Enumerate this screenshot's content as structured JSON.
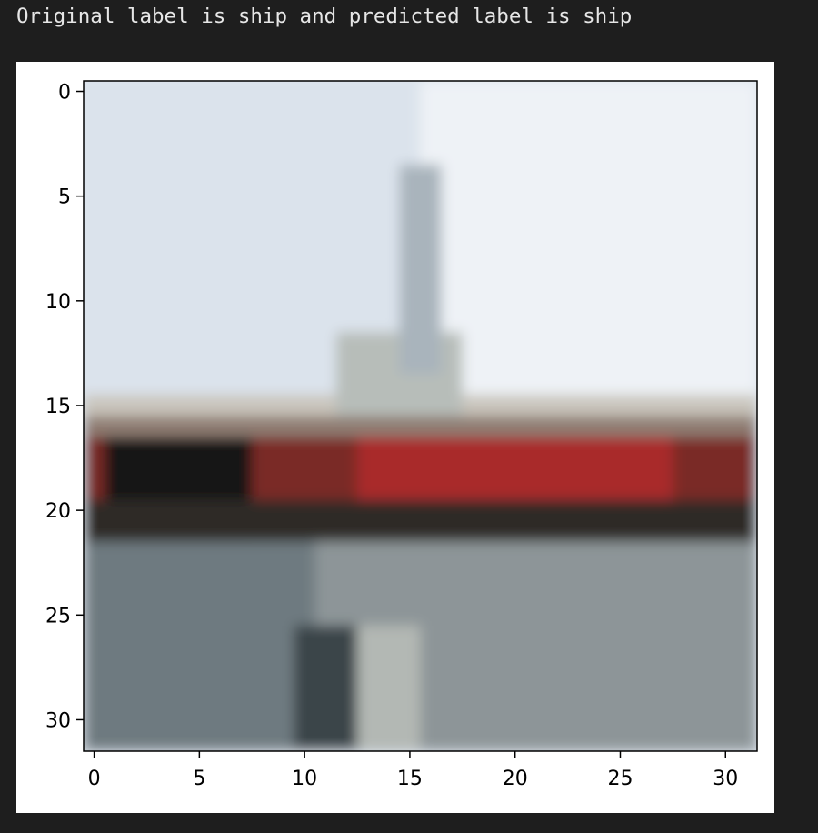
{
  "output": {
    "text": "Original label is ship and predicted label is ship"
  },
  "chart_data": {
    "type": "heatmap",
    "title": "",
    "xlabel": "",
    "ylabel": "",
    "xlim": [
      -0.5,
      31.5
    ],
    "ylim": [
      31.5,
      -0.5
    ],
    "xticks": [
      0,
      5,
      10,
      15,
      20,
      25,
      30
    ],
    "yticks": [
      0,
      5,
      10,
      15,
      20,
      25,
      30
    ],
    "grid": false,
    "image_size": [
      32,
      32
    ],
    "bands": [
      {
        "rows": [
          0,
          14
        ],
        "cols": [
          0,
          31
        ],
        "color": "#dbe3ec"
      },
      {
        "rows": [
          0,
          14
        ],
        "cols": [
          16,
          31
        ],
        "color": "#eef2f6"
      },
      {
        "rows": [
          15,
          15
        ],
        "cols": [
          0,
          31
        ],
        "color": "#c9c5bc"
      },
      {
        "rows": [
          16,
          16
        ],
        "cols": [
          0,
          31
        ],
        "color": "#8f7d72"
      },
      {
        "rows": [
          17,
          19
        ],
        "cols": [
          0,
          31
        ],
        "color": "#7a2a28"
      },
      {
        "rows": [
          17,
          19
        ],
        "cols": [
          13,
          27
        ],
        "color": "#a9292c"
      },
      {
        "rows": [
          17,
          21
        ],
        "cols": [
          1,
          7
        ],
        "color": "#141414"
      },
      {
        "rows": [
          20,
          21
        ],
        "cols": [
          0,
          31
        ],
        "color": "#2f2a26"
      },
      {
        "rows": [
          22,
          31
        ],
        "cols": [
          0,
          31
        ],
        "color": "#8d9598"
      },
      {
        "rows": [
          22,
          31
        ],
        "cols": [
          0,
          10
        ],
        "color": "#6e7a80"
      },
      {
        "rows": [
          26,
          31
        ],
        "cols": [
          10,
          12
        ],
        "color": "#3a4448"
      },
      {
        "rows": [
          26,
          31
        ],
        "cols": [
          13,
          15
        ],
        "color": "#b3b8b4"
      }
    ],
    "mast": {
      "rows": [
        4,
        13
      ],
      "cols": [
        15,
        16
      ],
      "color": "#a9b4bc"
    },
    "cabin": {
      "rows": [
        12,
        15
      ],
      "cols": [
        12,
        17
      ],
      "color": "#b7bdb9"
    }
  }
}
